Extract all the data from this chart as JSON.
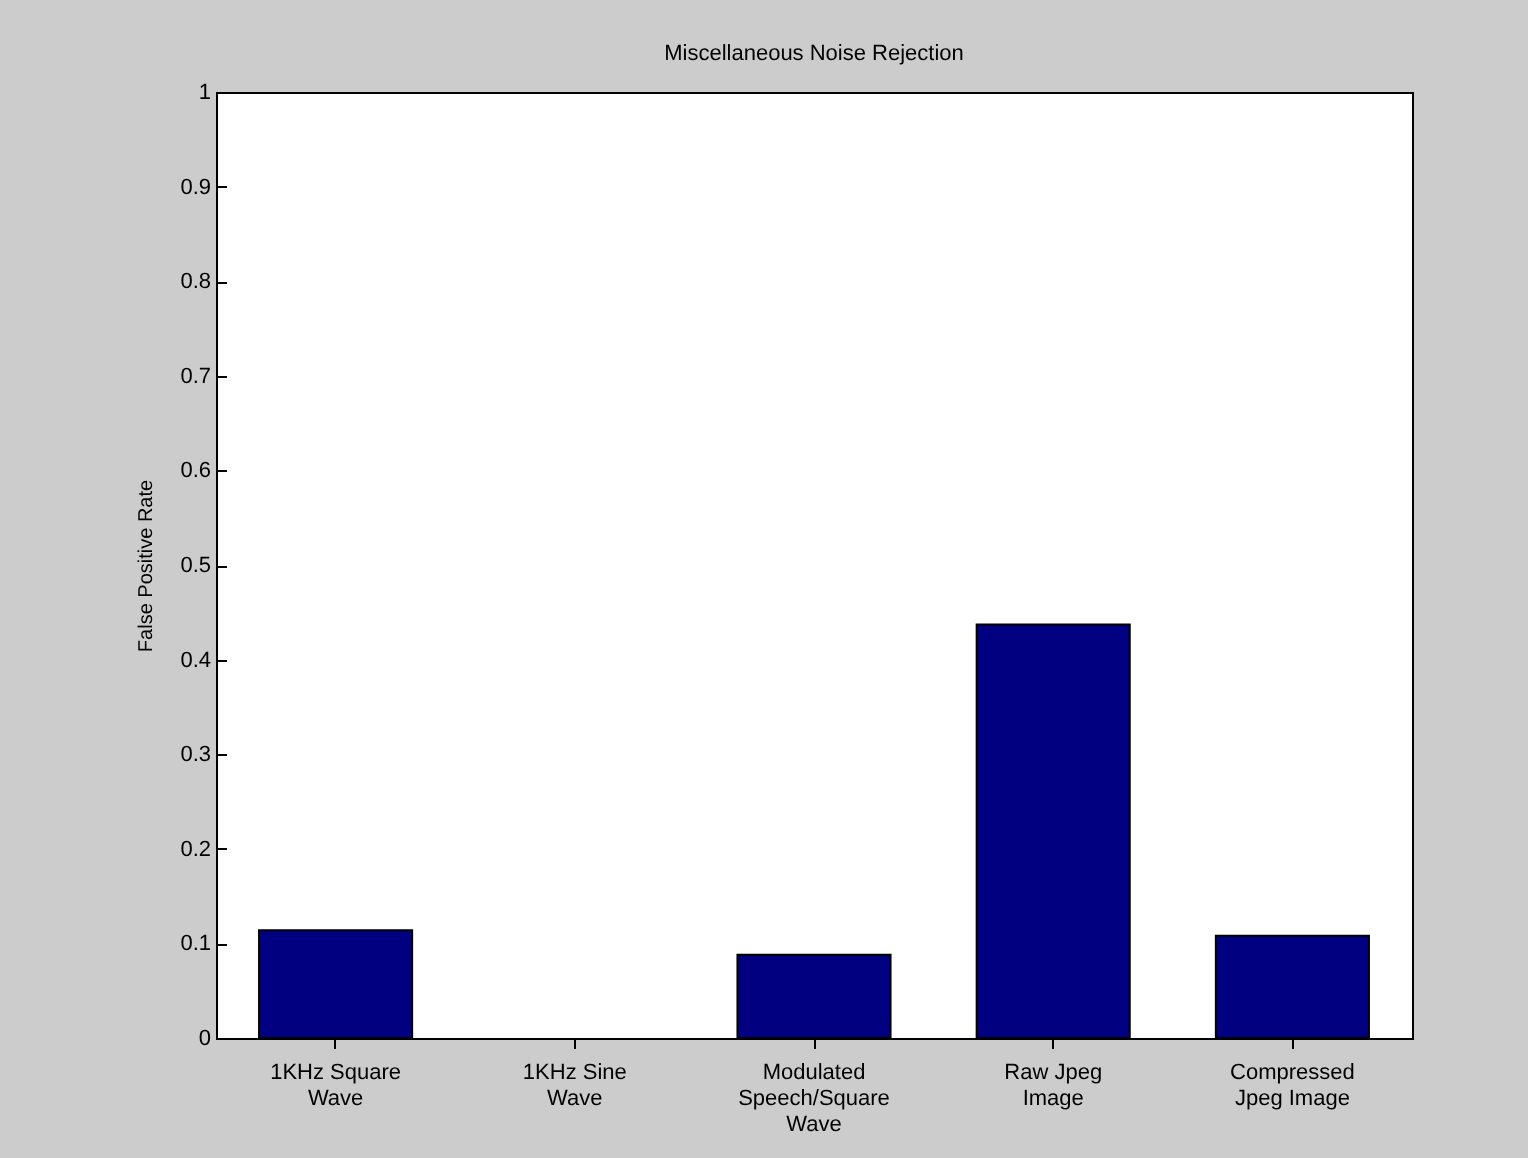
{
  "chart_data": {
    "type": "bar",
    "title": "Miscellaneous Noise Rejection",
    "ylabel": "False Positive Rate",
    "categories": [
      "1KHz Square\nWave",
      "1KHz Sine\nWave",
      "Modulated\nSpeech/Square\nWave",
      "Raw Jpeg\nImage",
      "Compressed\nJpeg Image"
    ],
    "values": [
      0.114,
      0,
      0.088,
      0.437,
      0.108
    ],
    "color": "#000080",
    "ylim": [
      0,
      1
    ],
    "yticks": [
      0,
      0.1,
      0.2,
      0.3,
      0.4,
      0.5,
      0.6,
      0.7,
      0.8,
      0.9,
      1
    ],
    "grid": false
  }
}
